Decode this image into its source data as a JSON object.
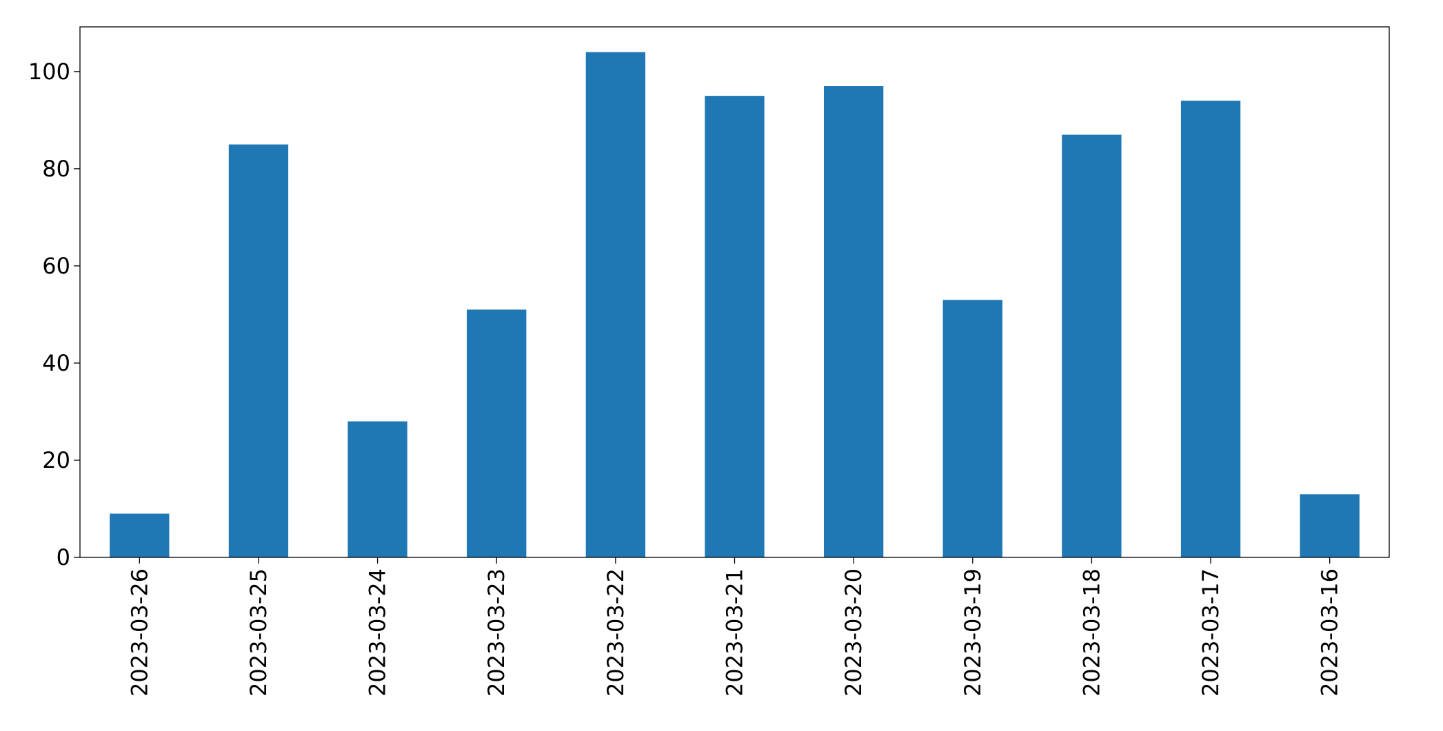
{
  "chart_data": {
    "type": "bar",
    "categories": [
      "2023-03-26",
      "2023-03-25",
      "2023-03-24",
      "2023-03-23",
      "2023-03-22",
      "2023-03-21",
      "2023-03-20",
      "2023-03-19",
      "2023-03-18",
      "2023-03-17",
      "2023-03-16"
    ],
    "values": [
      9,
      85,
      28,
      51,
      104,
      95,
      97,
      53,
      87,
      94,
      13
    ],
    "color": "#1f77b4",
    "ylim": [
      0,
      109.2
    ],
    "yticks": [
      0,
      20,
      40,
      60,
      80,
      100
    ],
    "grid": false
  }
}
